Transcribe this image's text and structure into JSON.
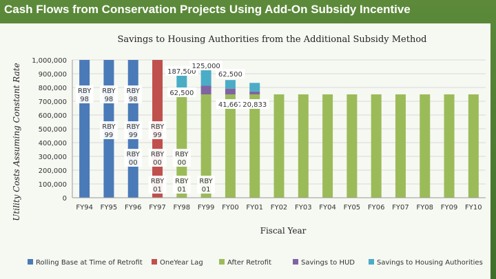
{
  "slide_title": "Cash Flows from Conservation Projects Using  Add-On Subsidy Incentive",
  "colors": {
    "rolling_base": "#4a7ab8",
    "one_year_lag": "#c0504d",
    "after_retrofit": "#9bbb59",
    "savings_hud": "#8064a2",
    "savings_ha": "#4bacc6"
  },
  "chart_data": {
    "type": "bar",
    "stacked": true,
    "title": "Savings to Housing Authorities from the Additional Subsidy Method",
    "xlabel": "Fiscal Year",
    "ylabel": "Utility Costs Assuming Constant Rate",
    "ylim": [
      0,
      1000000
    ],
    "yticks": [
      {
        "value": 0,
        "label": "0"
      },
      {
        "value": 100000,
        "label": "100,000"
      },
      {
        "value": 200000,
        "label": "200,000"
      },
      {
        "value": 300000,
        "label": "300,000"
      },
      {
        "value": 400000,
        "label": "400,000"
      },
      {
        "value": 500000,
        "label": "500,000"
      },
      {
        "value": 600000,
        "label": "600,000"
      },
      {
        "value": 700000,
        "label": "700,000"
      },
      {
        "value": 800000,
        "label": "800,000"
      },
      {
        "value": 900000,
        "label": "900,000"
      },
      {
        "value": 1000000,
        "label": "1,000,000"
      }
    ],
    "categories": [
      "FY94",
      "FY95",
      "FY96",
      "FY97",
      "FY98",
      "FY99",
      "FY00",
      "FY01",
      "FY02",
      "FY03",
      "FY04",
      "FY05",
      "FY06",
      "FY07",
      "FY08",
      "FY09",
      "FY10"
    ],
    "legend_position": "bottom",
    "series": [
      {
        "name": "Rolling Base at Time of Retrofit",
        "color_key": "rolling_base",
        "values": [
          1000000,
          1000000,
          1000000,
          0,
          0,
          0,
          0,
          0,
          0,
          0,
          0,
          0,
          0,
          0,
          0,
          0,
          0
        ]
      },
      {
        "name": "OneYear Lag",
        "color_key": "one_year_lag",
        "values": [
          0,
          0,
          0,
          1000000,
          0,
          0,
          0,
          0,
          0,
          0,
          0,
          0,
          0,
          0,
          0,
          0,
          0
        ]
      },
      {
        "name": "After Retrofit",
        "color_key": "after_retrofit",
        "values": [
          0,
          0,
          0,
          0,
          750000,
          750000,
          750000,
          750000,
          750000,
          750000,
          750000,
          750000,
          750000,
          750000,
          750000,
          750000,
          750000
        ]
      },
      {
        "name": "Savings to HUD",
        "color_key": "savings_hud",
        "values": [
          0,
          0,
          0,
          0,
          0,
          62500,
          41667,
          20833,
          0,
          0,
          0,
          0,
          0,
          0,
          0,
          0,
          0
        ]
      },
      {
        "name": "Savings to Housing Authorities",
        "color_key": "savings_ha",
        "values": [
          0,
          0,
          0,
          0,
          187500,
          125000,
          62500,
          62500,
          0,
          0,
          0,
          0,
          0,
          0,
          0,
          0,
          0
        ]
      }
    ],
    "value_labels": [
      {
        "text": "187,500",
        "x": "FY98",
        "y": 905000
      },
      {
        "text": "125,000",
        "x": "FY99",
        "y": 945000
      },
      {
        "text": "62,500",
        "x": "FY00",
        "y": 885000
      },
      {
        "text": "62,500",
        "x": "FY98",
        "y": 750000
      },
      {
        "text": "41,667",
        "x": "FY00",
        "y": 665000
      },
      {
        "text": "20,833",
        "x": "FY01",
        "y": 665000
      }
    ],
    "rby_labels": [
      {
        "line1": "RBY",
        "line2": "98",
        "x": "FY94",
        "y": 760000
      },
      {
        "line1": "RBY",
        "line2": "98",
        "x": "FY95",
        "y": 760000
      },
      {
        "line1": "RBY",
        "line2": "98",
        "x": "FY96",
        "y": 760000
      },
      {
        "line1": "RBY",
        "line2": "99",
        "x": "FY95",
        "y": 500000
      },
      {
        "line1": "RBY",
        "line2": "99",
        "x": "FY96",
        "y": 500000
      },
      {
        "line1": "RBY",
        "line2": "99",
        "x": "FY97",
        "y": 500000
      },
      {
        "line1": "RBY",
        "line2": "00",
        "x": "FY96",
        "y": 300000
      },
      {
        "line1": "RBY",
        "line2": "00",
        "x": "FY97",
        "y": 300000
      },
      {
        "line1": "RBY",
        "line2": "00",
        "x": "FY98",
        "y": 300000
      },
      {
        "line1": "RBY",
        "line2": "01",
        "x": "FY97",
        "y": 105000
      },
      {
        "line1": "RBY",
        "line2": "01",
        "x": "FY98",
        "y": 105000
      },
      {
        "line1": "RBY",
        "line2": "01",
        "x": "FY99",
        "y": 105000
      }
    ]
  }
}
